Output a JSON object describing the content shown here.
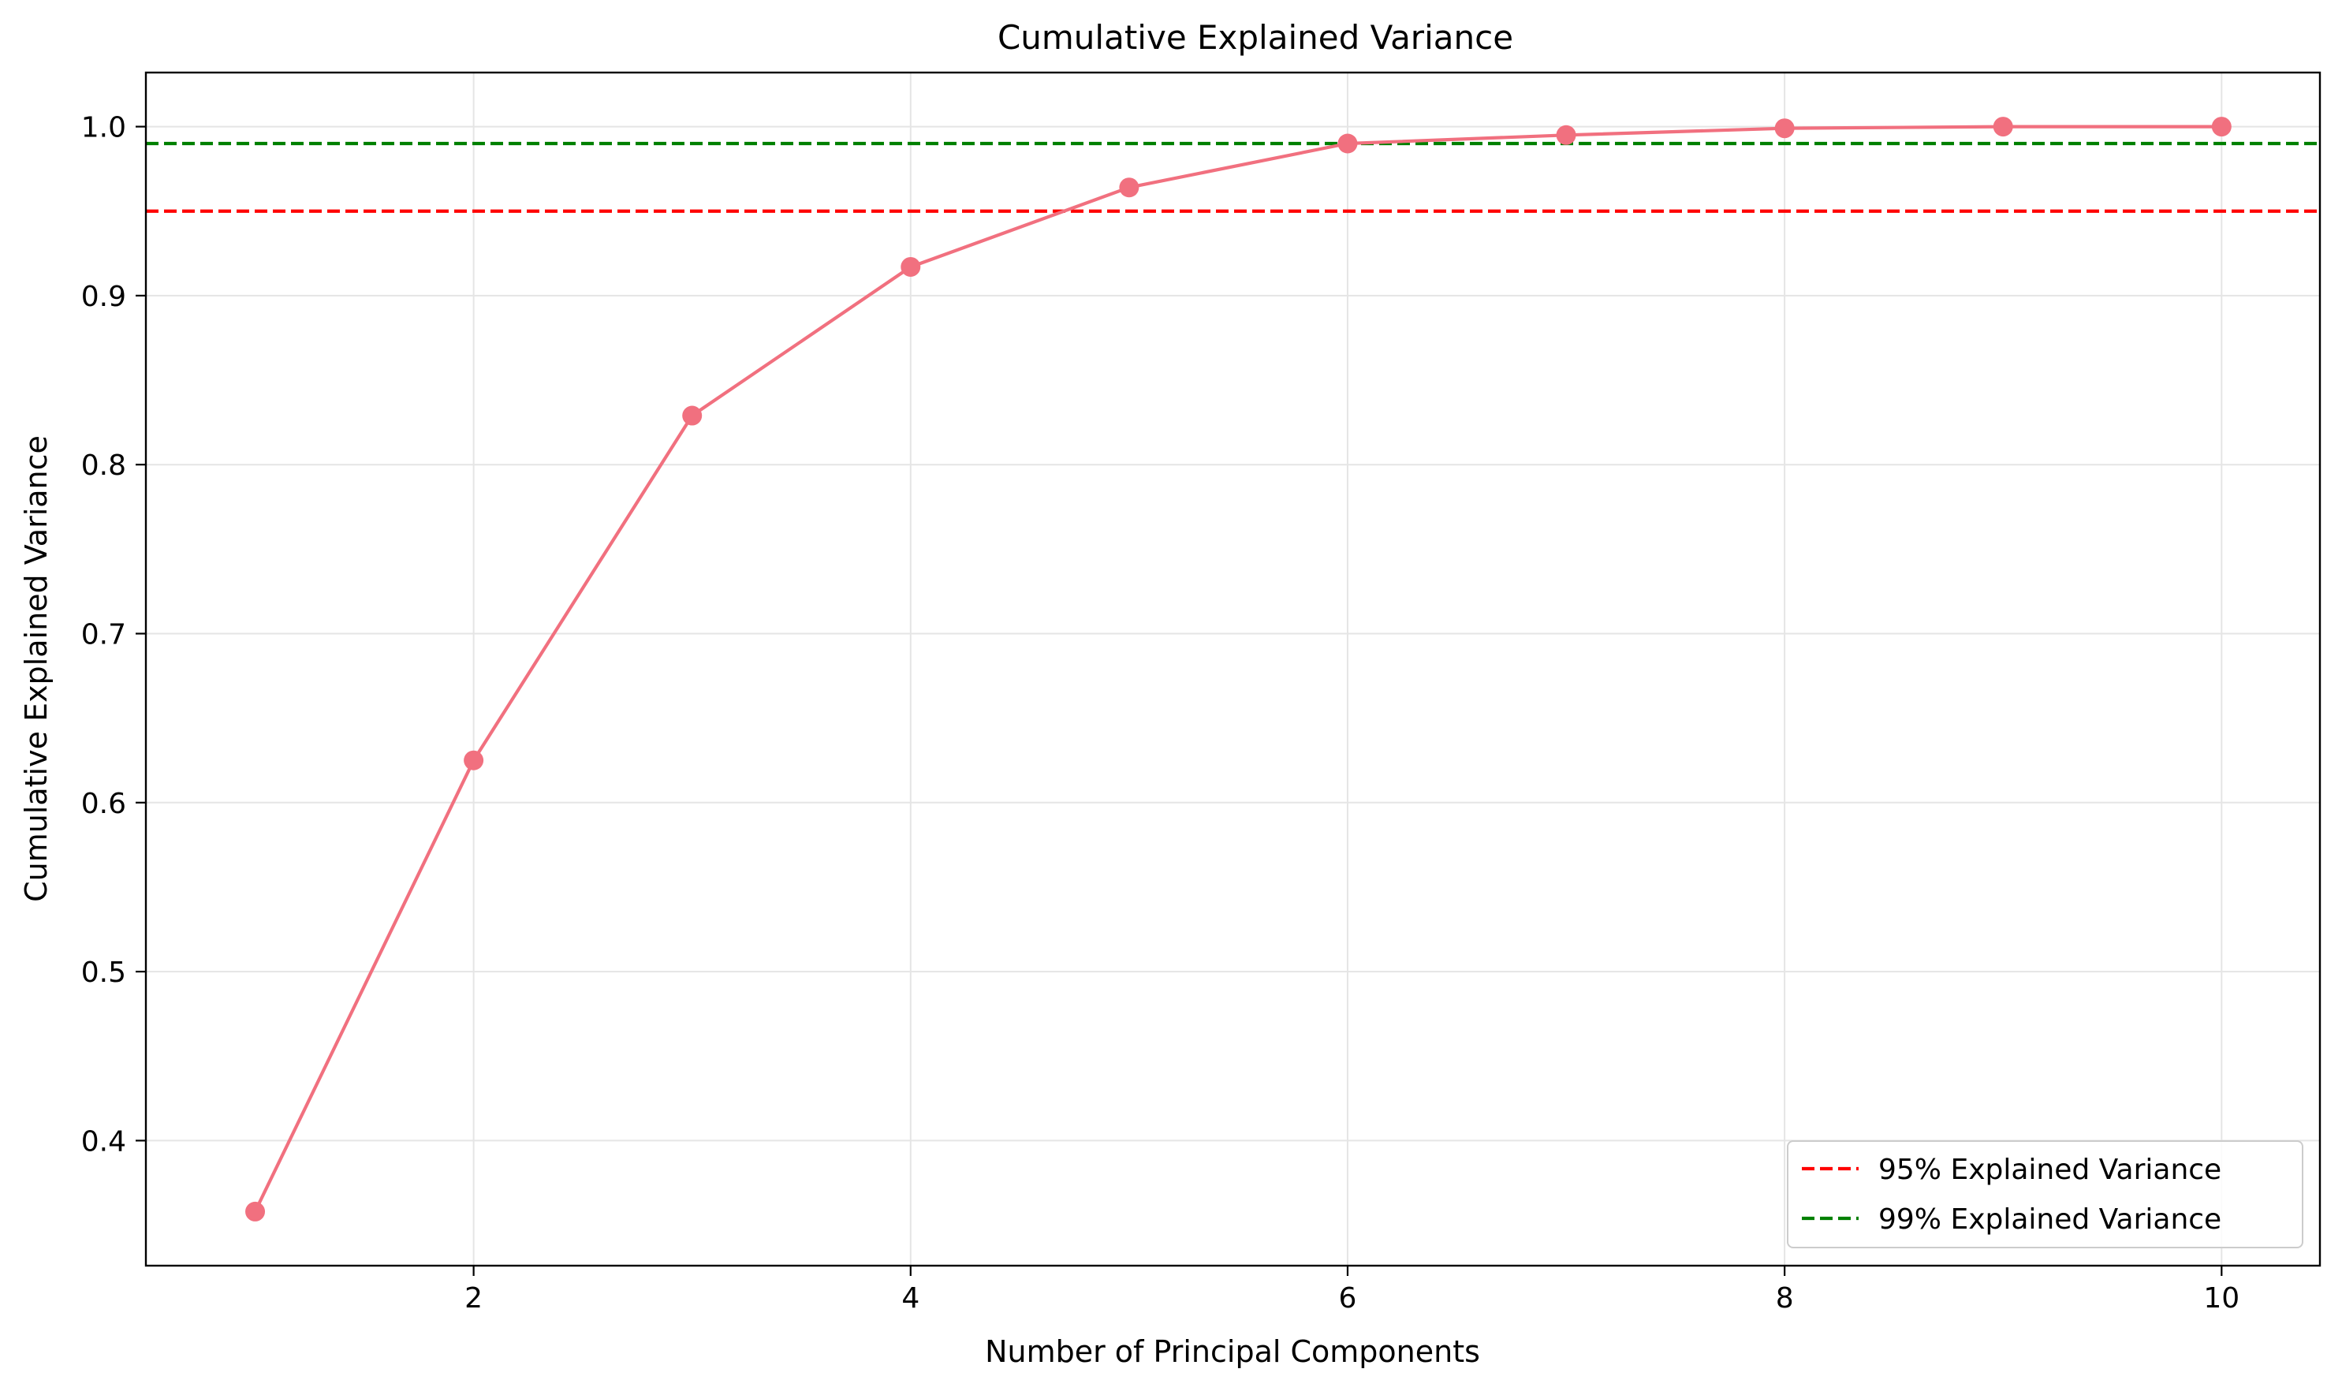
{
  "chart_data": {
    "type": "line",
    "title": "Cumulative Explained Variance",
    "xlabel": "Number of Principal Components",
    "ylabel": "Cumulative Explained Variance",
    "xlim": [
      0.5,
      10.45
    ],
    "ylim": [
      0.326,
      1.032
    ],
    "xticks": [
      2,
      4,
      6,
      8,
      10
    ],
    "xtick_labels": [
      "2",
      "4",
      "6",
      "8",
      "10"
    ],
    "yticks": [
      0.4,
      0.5,
      0.6,
      0.7,
      0.8,
      0.9,
      1.0
    ],
    "ytick_labels": [
      "0.4",
      "0.5",
      "0.6",
      "0.7",
      "0.8",
      "0.9",
      "1.0"
    ],
    "grid": true,
    "legend_position": "lower-right",
    "x": [
      1,
      2,
      3,
      4,
      5,
      6,
      7,
      8,
      9,
      10
    ],
    "series": [
      {
        "values": [
          0.358,
          0.625,
          0.829,
          0.917,
          0.964,
          0.99,
          0.995,
          0.999,
          1.0,
          1.0
        ],
        "color": "#f1707f",
        "marker": "circle"
      }
    ],
    "reference_lines": [
      {
        "label": "95% Explained Variance",
        "y": 0.95,
        "color": "#ff0000",
        "style": "dashed"
      },
      {
        "label": "99% Explained Variance",
        "y": 0.99,
        "color": "#008000",
        "style": "dashed"
      }
    ]
  }
}
